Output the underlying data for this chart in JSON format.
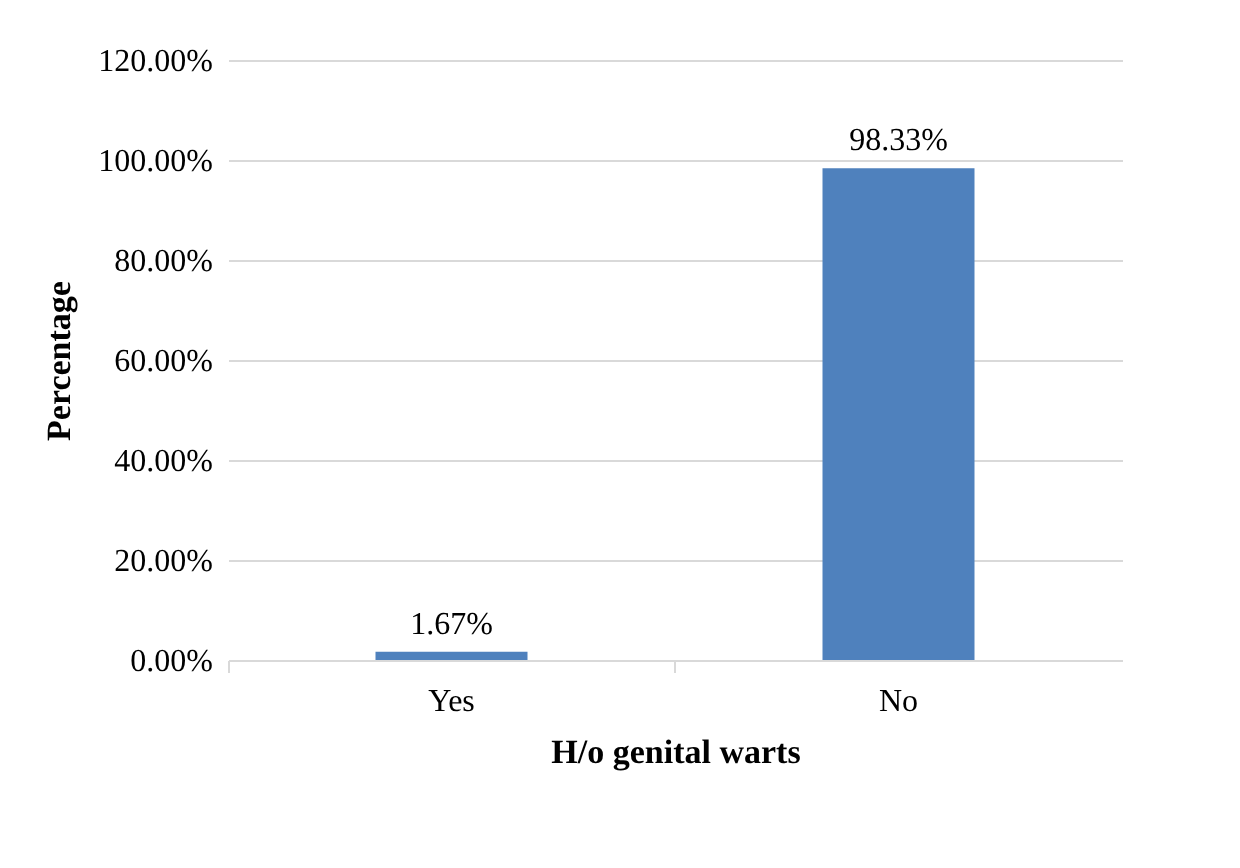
{
  "chart_data": {
    "type": "bar",
    "xlabel": "H/o genital warts",
    "ylabel": "Percentage",
    "categories": [
      "Yes",
      "No"
    ],
    "values": [
      1.67,
      98.33
    ],
    "value_labels": [
      "1.67%",
      "98.33%"
    ],
    "color": "#4f81bd",
    "ylim": [
      0,
      120
    ],
    "yticks": [
      {
        "value": 0,
        "label": "0.00%"
      },
      {
        "value": 20,
        "label": "20.00%"
      },
      {
        "value": 40,
        "label": "40.00%"
      },
      {
        "value": 60,
        "label": "60.00%"
      },
      {
        "value": 80,
        "label": "80.00%"
      },
      {
        "value": 100,
        "label": "100.00%"
      },
      {
        "value": 120,
        "label": "120.00%"
      }
    ],
    "grid": "y"
  }
}
